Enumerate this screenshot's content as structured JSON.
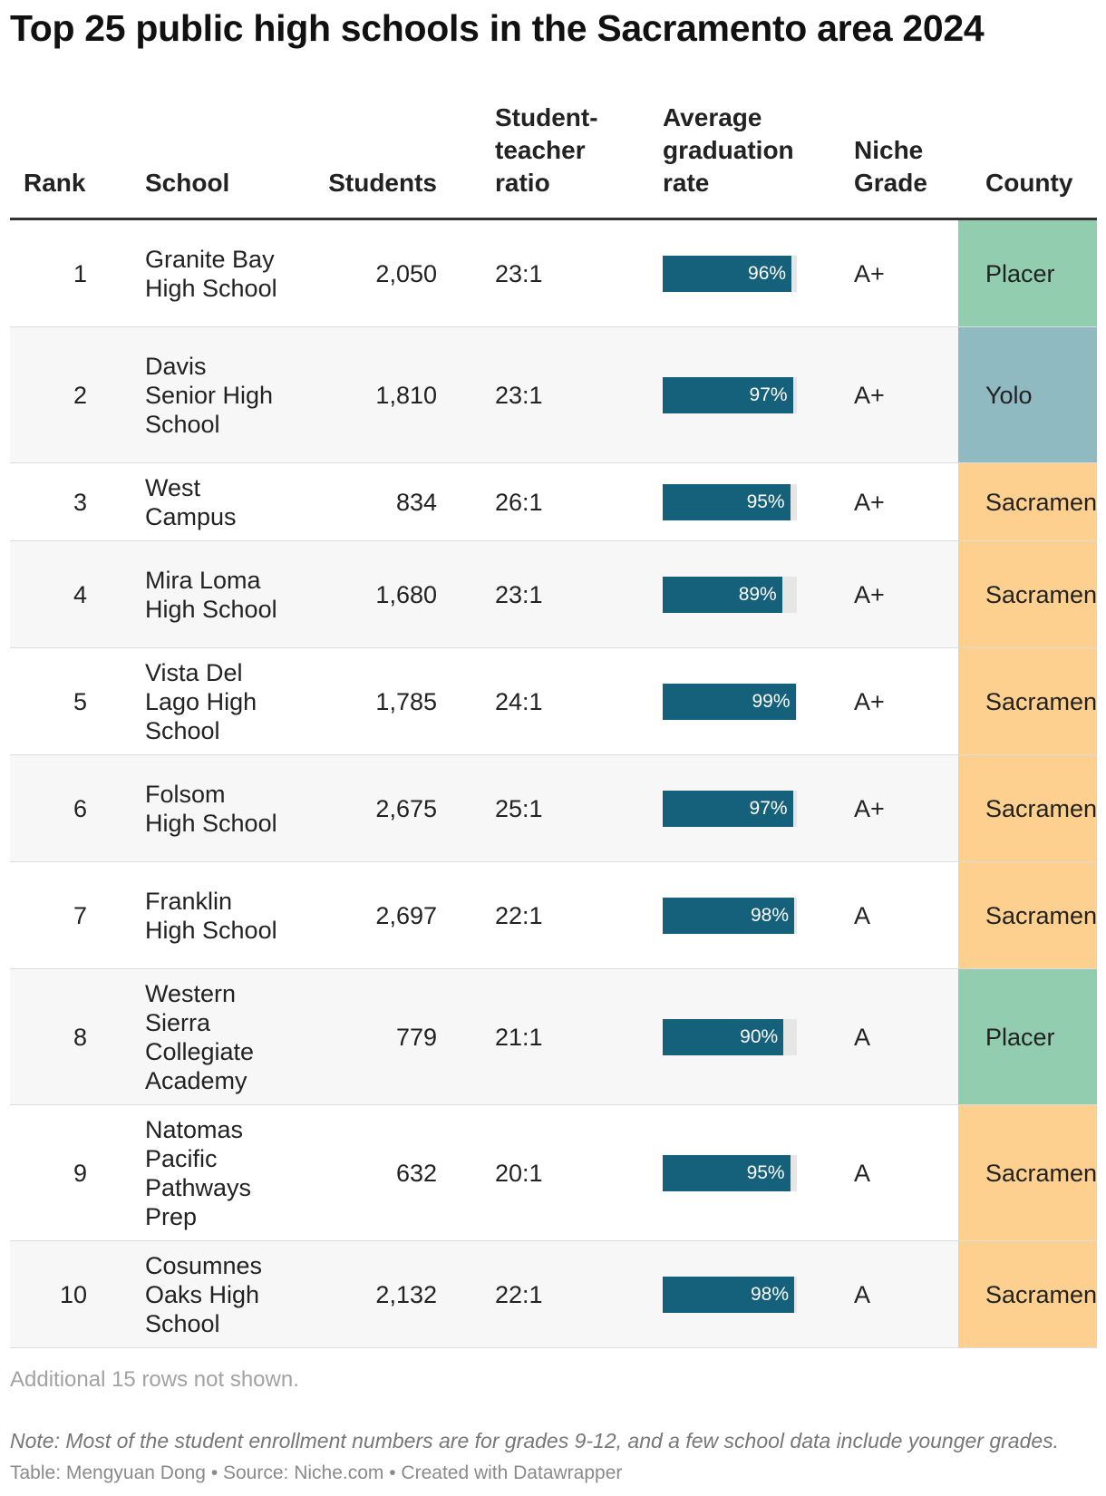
{
  "title": "Top 25 public high schools in the Sacramento area 2024",
  "columns": {
    "rank": "Rank",
    "school": "School",
    "students": "Students",
    "ratio": "Student-\nteacher\nratio",
    "grad": "Average\ngraduation\nrate",
    "grade": "Niche\nGrade",
    "county": "County"
  },
  "county_colors": {
    "Placer": "#92cdaf",
    "Yolo": "#8fbac1",
    "Sacramento": "#fdd08f"
  },
  "bar_color": "#15607a",
  "bar_track_color": "#e6e6e6",
  "chart_data": {
    "type": "table",
    "title": "Top 25 public high schools in the Sacramento area 2024",
    "graduation_rate_range": [
      0,
      100
    ],
    "rows": [
      {
        "rank": "1",
        "school": "Granite Bay High School",
        "students": "2,050",
        "ratio": "23:1",
        "grad_rate": 96,
        "grad_label": "96%",
        "grade": "A+",
        "county": "Placer"
      },
      {
        "rank": "2",
        "school": "Davis Senior High School",
        "students": "1,810",
        "ratio": "23:1",
        "grad_rate": 97,
        "grad_label": "97%",
        "grade": "A+",
        "county": "Yolo"
      },
      {
        "rank": "3",
        "school": "West Campus",
        "students": "834",
        "ratio": "26:1",
        "grad_rate": 95,
        "grad_label": "95%",
        "grade": "A+",
        "county": "Sacramento"
      },
      {
        "rank": "4",
        "school": "Mira Loma High School",
        "students": "1,680",
        "ratio": "23:1",
        "grad_rate": 89,
        "grad_label": "89%",
        "grade": "A+",
        "county": "Sacramento"
      },
      {
        "rank": "5",
        "school": "Vista Del Lago High School",
        "students": "1,785",
        "ratio": "24:1",
        "grad_rate": 99,
        "grad_label": "99%",
        "grade": "A+",
        "county": "Sacramento"
      },
      {
        "rank": "6",
        "school": "Folsom High School",
        "students": "2,675",
        "ratio": "25:1",
        "grad_rate": 97,
        "grad_label": "97%",
        "grade": "A+",
        "county": "Sacramento"
      },
      {
        "rank": "7",
        "school": "Franklin High School",
        "students": "2,697",
        "ratio": "22:1",
        "grad_rate": 98,
        "grad_label": "98%",
        "grade": "A",
        "county": "Sacramento"
      },
      {
        "rank": "8",
        "school": "Western Sierra Collegiate Academy",
        "students": "779",
        "ratio": "21:1",
        "grad_rate": 90,
        "grad_label": "90%",
        "grade": "A",
        "county": "Placer"
      },
      {
        "rank": "9",
        "school": "Natomas Pacific Pathways Prep",
        "students": "632",
        "ratio": "20:1",
        "grad_rate": 95,
        "grad_label": "95%",
        "grade": "A",
        "county": "Sacramento"
      },
      {
        "rank": "10",
        "school": "Cosumnes Oaks High School",
        "students": "2,132",
        "ratio": "22:1",
        "grad_rate": 98,
        "grad_label": "98%",
        "grade": "A",
        "county": "Sacramento"
      }
    ]
  },
  "rows_hidden_note": "Additional 15 rows not shown.",
  "note": "Note: Most of the student enrollment numbers are for grades 9-12, and a few school data include younger grades.",
  "credit": "Table: Mengyuan Dong • Source: Niche.com • Created with Datawrapper"
}
